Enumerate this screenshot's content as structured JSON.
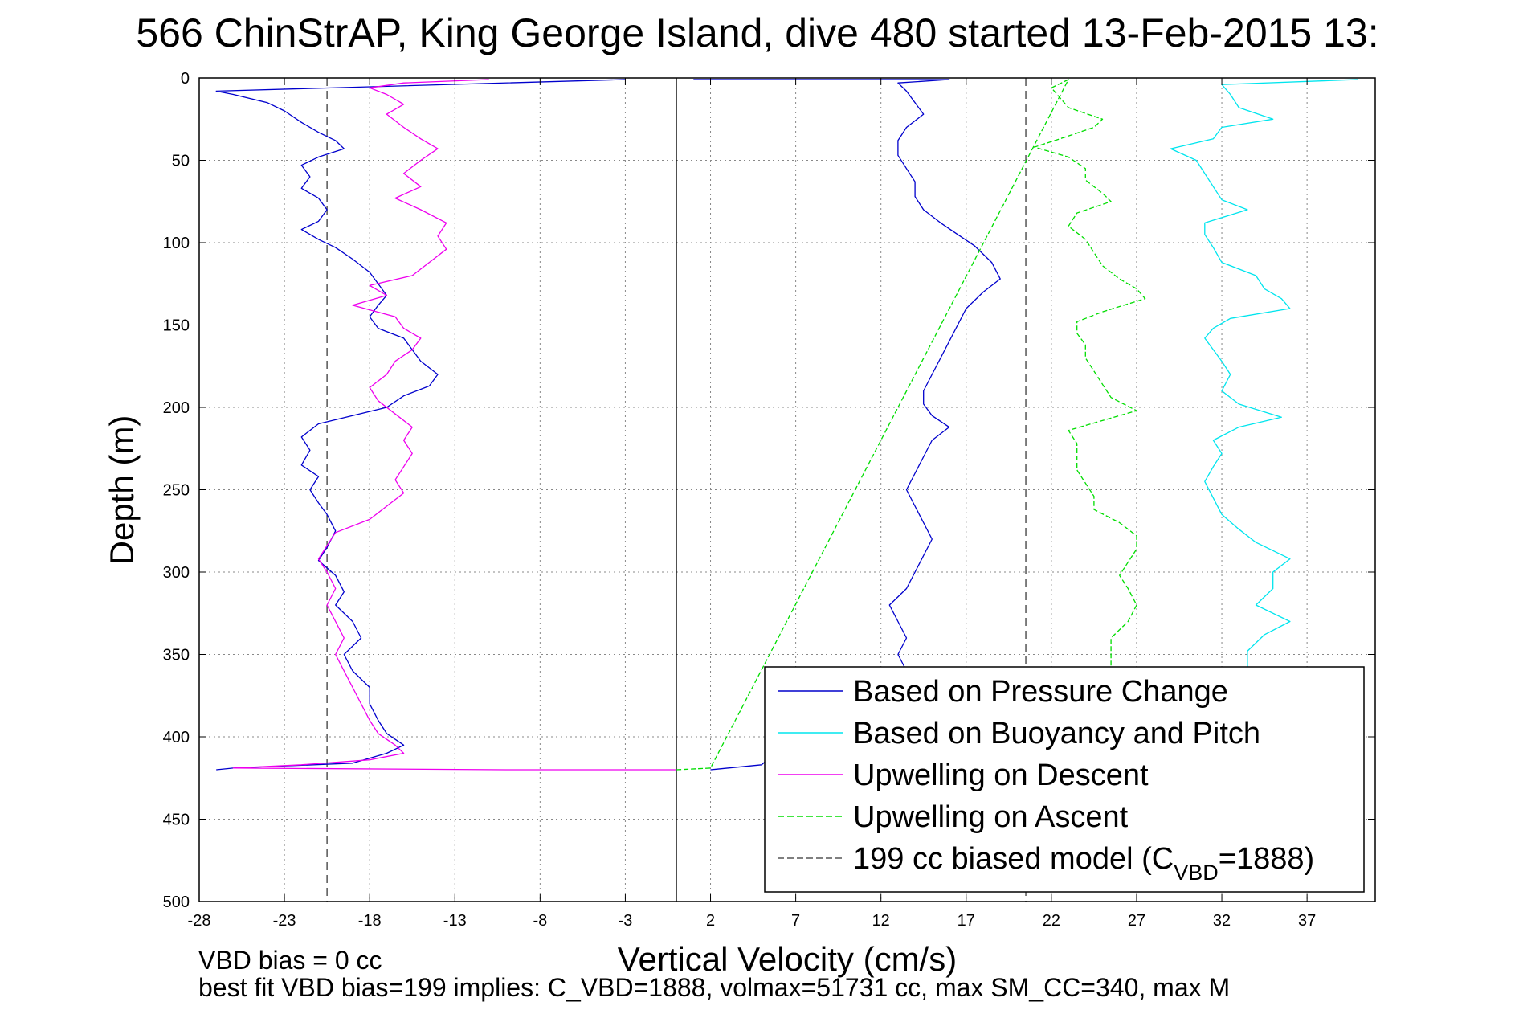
{
  "title": "566 ChinStrAP, King George Island, dive 480 started 13-Feb-2015 13:",
  "footer": {
    "line1": "VBD bias = 0 cc",
    "line2": "best fit VBD bias=199 implies: C_VBD=1888, volmax=51731 cc, max SM_CC=340, max M"
  },
  "colors": {
    "pressure": "#0000cc",
    "buoyancy": "#00e5ee",
    "upwelling_descent": "#ee00ee",
    "upwelling_ascent": "#00dd00",
    "model": "#555555"
  },
  "chart_data": {
    "type": "line",
    "xlabel": "Vertical Velocity (cm/s)",
    "ylabel": "Depth (m)",
    "xlim": [
      -28,
      41
    ],
    "ylim": [
      0,
      500
    ],
    "y_reversed": true,
    "xticks": [
      -28,
      -23,
      -18,
      -13,
      -8,
      -3,
      2,
      7,
      12,
      17,
      22,
      27,
      32,
      37
    ],
    "yticks": [
      0,
      50,
      100,
      150,
      200,
      250,
      300,
      350,
      400,
      450,
      500
    ],
    "grid": true,
    "legend_position": "bottom-right",
    "zero_line_x": 0,
    "model_lines_x": [
      -20.5,
      20.5
    ],
    "legend": [
      {
        "label": "Based on Pressure Change",
        "key": "pressure",
        "dash": false
      },
      {
        "label": "Based on Buoyancy and Pitch",
        "key": "buoyancy",
        "dash": false
      },
      {
        "label": "Upwelling on Descent",
        "key": "upwelling_descent",
        "dash": false
      },
      {
        "label": "Upwelling on Ascent",
        "key": "upwelling_ascent",
        "dash": true
      },
      {
        "label_pre": "199 cc biased model (C",
        "label_sub": "VBD",
        "label_post": "=1888)",
        "key": "model",
        "dash": true
      }
    ],
    "series": [
      {
        "name": "Based on Pressure Change",
        "key": "pressure",
        "points": [
          [
            -3,
            1
          ],
          [
            -27,
            8
          ],
          [
            -26,
            10
          ],
          [
            -24,
            15
          ],
          [
            -23,
            20
          ],
          [
            -22,
            27
          ],
          [
            -21,
            33
          ],
          [
            -20,
            38
          ],
          [
            -19.5,
            43
          ],
          [
            -21,
            48
          ],
          [
            -22,
            53
          ],
          [
            -21.5,
            60
          ],
          [
            -22,
            67
          ],
          [
            -21,
            73
          ],
          [
            -20.5,
            80
          ],
          [
            -21,
            87
          ],
          [
            -22,
            92
          ],
          [
            -21,
            98
          ],
          [
            -20,
            103
          ],
          [
            -19,
            110
          ],
          [
            -18,
            118
          ],
          [
            -17.5,
            125
          ],
          [
            -17,
            132
          ],
          [
            -17.5,
            138
          ],
          [
            -18,
            145
          ],
          [
            -17.5,
            152
          ],
          [
            -16,
            158
          ],
          [
            -15.5,
            165
          ],
          [
            -15,
            172
          ],
          [
            -14,
            180
          ],
          [
            -14.5,
            187
          ],
          [
            -16,
            193
          ],
          [
            -17,
            200
          ],
          [
            -19,
            205
          ],
          [
            -21,
            210
          ],
          [
            -22,
            218
          ],
          [
            -21.5,
            226
          ],
          [
            -22,
            235
          ],
          [
            -21,
            242
          ],
          [
            -21.5,
            250
          ],
          [
            -21,
            258
          ],
          [
            -20.5,
            265
          ],
          [
            -20,
            275
          ],
          [
            -20.5,
            285
          ],
          [
            -21,
            293
          ],
          [
            -20,
            302
          ],
          [
            -19.5,
            312
          ],
          [
            -20,
            320
          ],
          [
            -19,
            330
          ],
          [
            -18.5,
            340
          ],
          [
            -19.5,
            350
          ],
          [
            -19,
            360
          ],
          [
            -18,
            370
          ],
          [
            -18,
            380
          ],
          [
            -17.5,
            390
          ],
          [
            -17,
            398
          ],
          [
            -16,
            405
          ],
          [
            -17,
            410
          ],
          [
            -19,
            416
          ],
          [
            -26,
            419
          ],
          [
            -27,
            420
          ]
        ]
      },
      {
        "name": "Based on Pressure Change",
        "key": "pressure",
        "points": [
          [
            2,
            420
          ],
          [
            5,
            417
          ],
          [
            6,
            408
          ],
          [
            9,
            400
          ],
          [
            12,
            390
          ],
          [
            13.5,
            380
          ],
          [
            13,
            370
          ],
          [
            13.5,
            360
          ],
          [
            13,
            350
          ],
          [
            13.5,
            340
          ],
          [
            13,
            330
          ],
          [
            12.5,
            320
          ],
          [
            13.5,
            310
          ],
          [
            14,
            300
          ],
          [
            14.5,
            290
          ],
          [
            15,
            280
          ],
          [
            14.5,
            270
          ],
          [
            14,
            260
          ],
          [
            13.5,
            250
          ],
          [
            14,
            240
          ],
          [
            14.5,
            230
          ],
          [
            15,
            220
          ],
          [
            16,
            212
          ],
          [
            15,
            205
          ],
          [
            14.5,
            198
          ],
          [
            14.5,
            190
          ],
          [
            15,
            180
          ],
          [
            15.5,
            170
          ],
          [
            16,
            160
          ],
          [
            16.5,
            150
          ],
          [
            17,
            140
          ],
          [
            18,
            130
          ],
          [
            19,
            122
          ],
          [
            18.5,
            112
          ],
          [
            17.5,
            102
          ],
          [
            16.5,
            95
          ],
          [
            15.5,
            88
          ],
          [
            14.5,
            80
          ],
          [
            14,
            72
          ],
          [
            14,
            63
          ],
          [
            13.5,
            55
          ],
          [
            13,
            47
          ],
          [
            13,
            38
          ],
          [
            13.5,
            30
          ],
          [
            14.5,
            22
          ],
          [
            14,
            15
          ],
          [
            13.5,
            8
          ],
          [
            13,
            3
          ],
          [
            16,
            1
          ],
          [
            1,
            1
          ]
        ]
      },
      {
        "name": "Based on Buoyancy and Pitch",
        "key": "buoyancy",
        "points": [
          [
            40,
            1
          ],
          [
            32,
            4
          ],
          [
            32.5,
            10
          ],
          [
            33,
            18
          ],
          [
            35,
            25
          ],
          [
            32,
            30
          ],
          [
            31.5,
            37
          ],
          [
            29,
            43
          ],
          [
            30.5,
            50
          ],
          [
            31,
            58
          ],
          [
            31.5,
            66
          ],
          [
            32,
            74
          ],
          [
            33.5,
            80
          ],
          [
            31,
            88
          ],
          [
            31,
            95
          ],
          [
            31.5,
            103
          ],
          [
            32,
            112
          ],
          [
            34,
            120
          ],
          [
            34.5,
            128
          ],
          [
            35.5,
            134
          ],
          [
            36,
            140
          ],
          [
            32.5,
            146
          ],
          [
            31.5,
            152
          ],
          [
            31,
            158
          ],
          [
            31.5,
            165
          ],
          [
            32,
            172
          ],
          [
            32.5,
            180
          ],
          [
            32,
            190
          ],
          [
            33,
            198
          ],
          [
            35.5,
            206
          ],
          [
            33,
            212
          ],
          [
            31.5,
            220
          ],
          [
            32,
            228
          ],
          [
            31.5,
            236
          ],
          [
            31,
            245
          ],
          [
            31.5,
            255
          ],
          [
            32,
            265
          ],
          [
            33,
            274
          ],
          [
            34,
            282
          ],
          [
            36,
            292
          ],
          [
            35,
            300
          ],
          [
            35,
            310
          ],
          [
            34,
            320
          ],
          [
            36,
            330
          ],
          [
            34.5,
            338
          ],
          [
            33.5,
            348
          ],
          [
            33.5,
            358
          ],
          [
            33.5,
            365
          ]
        ]
      },
      {
        "name": "Upwelling on Descent",
        "key": "upwelling_descent",
        "points": [
          [
            -11,
            1
          ],
          [
            -16,
            3
          ],
          [
            -18,
            6
          ],
          [
            -17,
            10
          ],
          [
            -16,
            16
          ],
          [
            -17,
            22
          ],
          [
            -16,
            30
          ],
          [
            -15,
            37
          ],
          [
            -14,
            43
          ],
          [
            -15,
            50
          ],
          [
            -16,
            58
          ],
          [
            -15,
            66
          ],
          [
            -16.5,
            73
          ],
          [
            -15,
            80
          ],
          [
            -13.5,
            88
          ],
          [
            -14,
            96
          ],
          [
            -13.5,
            104
          ],
          [
            -14.5,
            112
          ],
          [
            -15.5,
            120
          ],
          [
            -18,
            126
          ],
          [
            -17,
            132
          ],
          [
            -19,
            138
          ],
          [
            -16.5,
            145
          ],
          [
            -16,
            152
          ],
          [
            -15,
            158
          ],
          [
            -15.5,
            165
          ],
          [
            -16.5,
            172
          ],
          [
            -17,
            180
          ],
          [
            -18,
            188
          ],
          [
            -17.5,
            196
          ],
          [
            -16.5,
            204
          ],
          [
            -15.5,
            212
          ],
          [
            -16,
            220
          ],
          [
            -15.5,
            228
          ],
          [
            -16,
            236
          ],
          [
            -16.5,
            244
          ],
          [
            -16,
            252
          ],
          [
            -17,
            260
          ],
          [
            -18,
            268
          ],
          [
            -20,
            276
          ],
          [
            -20.5,
            284
          ],
          [
            -21,
            292
          ],
          [
            -20.5,
            300
          ],
          [
            -20,
            310
          ],
          [
            -20.5,
            320
          ],
          [
            -20,
            330
          ],
          [
            -19.5,
            340
          ],
          [
            -20,
            350
          ],
          [
            -19.5,
            360
          ],
          [
            -19,
            370
          ],
          [
            -18.5,
            380
          ],
          [
            -18,
            390
          ],
          [
            -17.5,
            398
          ],
          [
            -16.5,
            405
          ],
          [
            -16,
            410
          ],
          [
            -18,
            414
          ],
          [
            -22,
            417
          ],
          [
            -26,
            419
          ],
          [
            -10,
            420
          ],
          [
            0,
            420
          ]
        ]
      },
      {
        "name": "Upwelling on Ascent",
        "key": "upwelling_ascent",
        "dash": true,
        "points": [
          [
            0,
            420
          ],
          [
            2,
            419
          ],
          [
            23,
            1
          ],
          [
            22,
            6
          ],
          [
            22.5,
            12
          ],
          [
            23,
            18
          ],
          [
            25,
            25
          ],
          [
            24.5,
            30
          ],
          [
            22.5,
            37
          ],
          [
            21,
            42
          ],
          [
            23,
            48
          ],
          [
            24,
            55
          ],
          [
            24,
            62
          ],
          [
            25,
            70
          ],
          [
            25.5,
            75
          ],
          [
            23.5,
            82
          ],
          [
            23,
            90
          ],
          [
            24,
            98
          ],
          [
            24.5,
            106
          ],
          [
            25,
            114
          ],
          [
            26,
            122
          ],
          [
            27,
            128
          ],
          [
            27.5,
            134
          ],
          [
            25,
            142
          ],
          [
            23.5,
            148
          ],
          [
            23.5,
            155
          ],
          [
            24,
            162
          ],
          [
            24,
            170
          ],
          [
            24.5,
            178
          ],
          [
            25,
            186
          ],
          [
            25.5,
            194
          ],
          [
            27,
            202
          ],
          [
            25,
            208
          ],
          [
            23,
            214
          ],
          [
            23.5,
            222
          ],
          [
            23.5,
            230
          ],
          [
            23.5,
            238
          ],
          [
            24,
            246
          ],
          [
            24.5,
            254
          ],
          [
            24.5,
            262
          ],
          [
            26,
            270
          ],
          [
            27,
            278
          ],
          [
            27,
            286
          ],
          [
            26.5,
            294
          ],
          [
            26,
            302
          ],
          [
            26.5,
            310
          ],
          [
            27,
            320
          ],
          [
            26.5,
            330
          ],
          [
            25.5,
            340
          ],
          [
            25.5,
            350
          ],
          [
            25.5,
            358
          ]
        ]
      }
    ]
  }
}
